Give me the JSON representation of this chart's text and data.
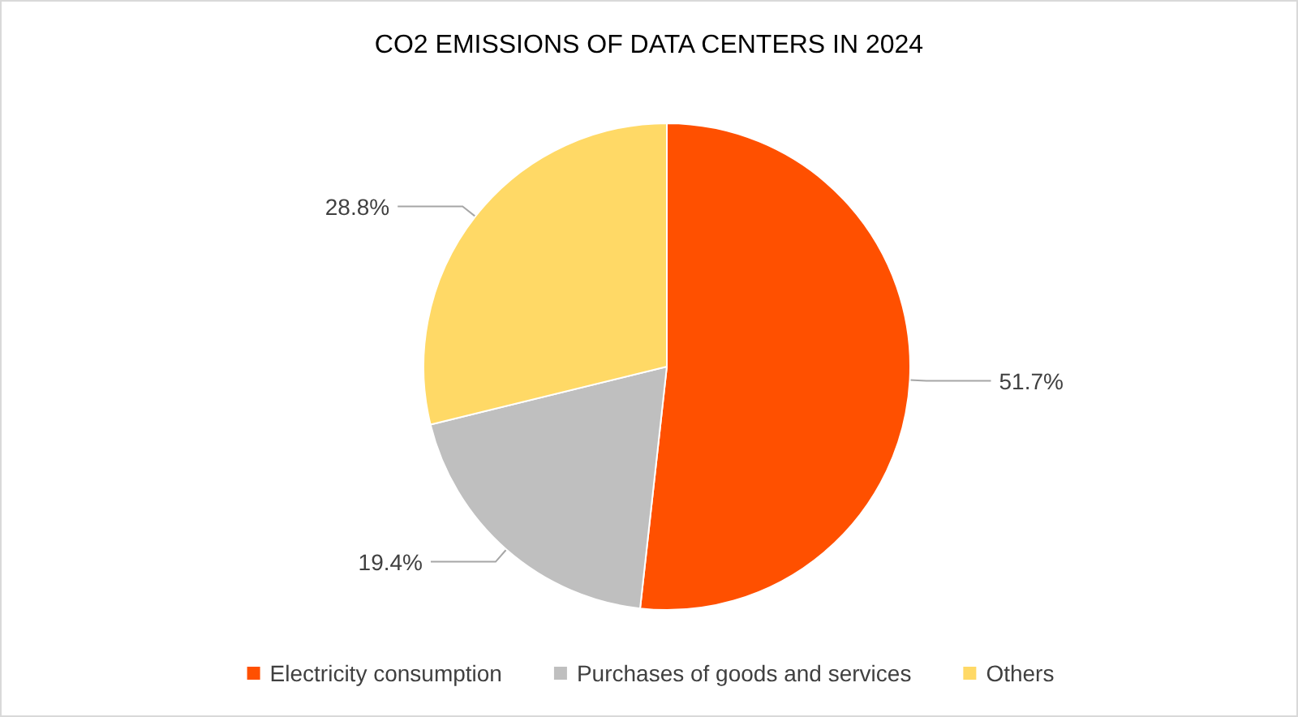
{
  "chart_data": {
    "type": "pie",
    "title": "CO2 EMISSIONS OF DATA CENTERS IN 2024",
    "categories": [
      "Electricity consumption",
      "Purchases of goods and services",
      "Others"
    ],
    "values": [
      51.7,
      19.4,
      28.8
    ],
    "colors": [
      "#ff5000",
      "#bfbfbf",
      "#ffd966"
    ],
    "value_labels": [
      "51.7%",
      "19.4%",
      "28.8%"
    ],
    "legend": "bottom"
  }
}
